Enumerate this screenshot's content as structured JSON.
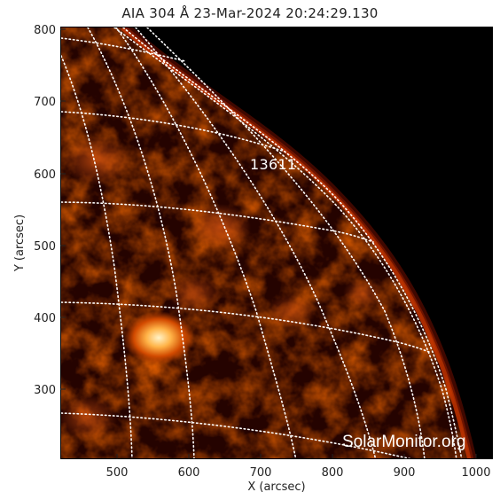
{
  "image": {
    "title": "AIA 304 Å 23-Mar-2024 20:24:29.130",
    "x_axis_label": "X (arcsec)",
    "y_axis_label": "Y (arcsec)",
    "x_ticks": [
      "500",
      "600",
      "700",
      "800",
      "900",
      "1000"
    ],
    "y_ticks": [
      "800",
      "700",
      "600",
      "500",
      "400",
      "300"
    ],
    "active_region_label": "13611",
    "watermark": "SolarMonitor.org",
    "colors": {
      "disk_dark": "#1a0000",
      "disk_mid": "#7a1400",
      "disk_bright": "#c83a00",
      "plage": "#ffd27a",
      "space": "#000000",
      "grid": "#ffffff"
    }
  }
}
